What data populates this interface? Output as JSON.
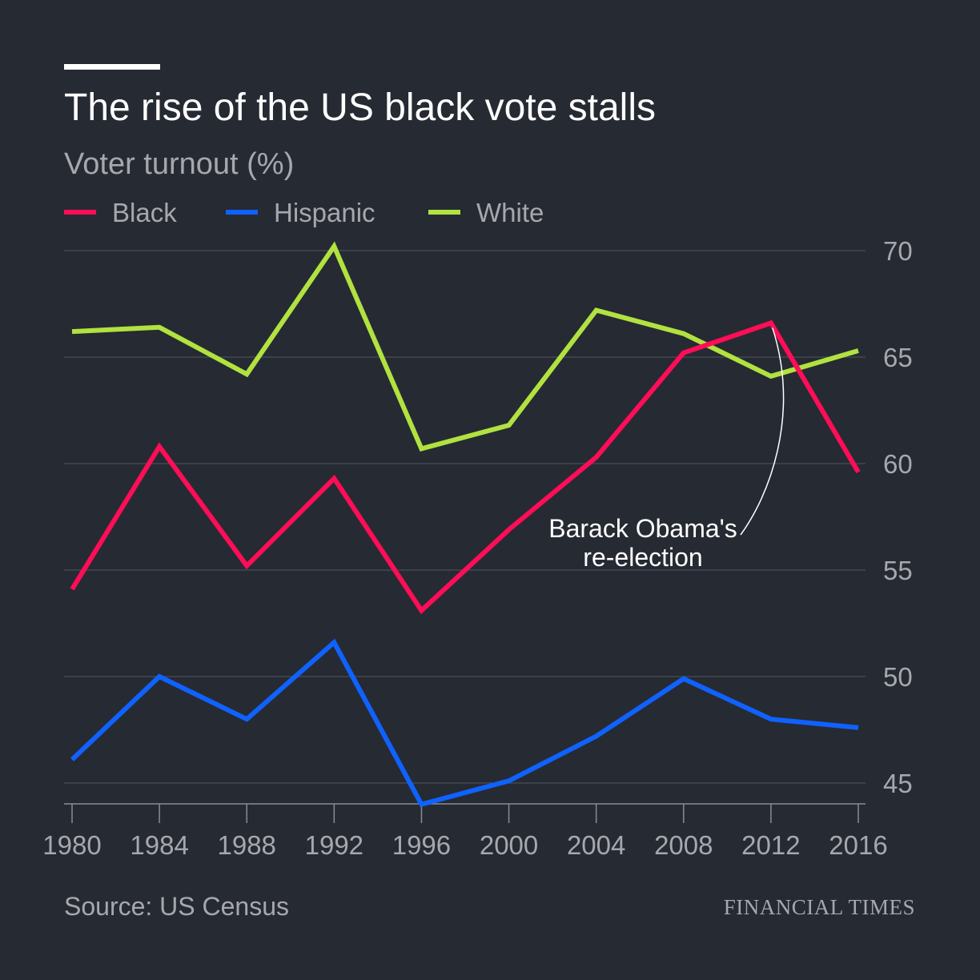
{
  "chart_data": {
    "type": "line",
    "title": "The rise of the US black vote stalls",
    "subtitle": "Voter turnout (%)",
    "x": [
      1980,
      1984,
      1988,
      1992,
      1996,
      2000,
      2004,
      2008,
      2012,
      2016
    ],
    "x_tick_labels": [
      "1980",
      "1984",
      "1988",
      "1992",
      "1996",
      "2000",
      "2004",
      "2008",
      "2012",
      "2016"
    ],
    "ylim": [
      44,
      70
    ],
    "y_ticks": [
      45,
      50,
      55,
      60,
      65,
      70
    ],
    "y_tick_labels": [
      "45",
      "50",
      "55",
      "60",
      "65",
      "70"
    ],
    "y_axis_side": "right",
    "grid": "horizontal",
    "legend_position": "top-left",
    "series": [
      {
        "name": "Black",
        "color": "#ff0d57",
        "values": [
          54.1,
          60.8,
          55.2,
          59.3,
          53.1,
          56.9,
          60.3,
          65.2,
          66.6,
          59.6
        ]
      },
      {
        "name": "Hispanic",
        "color": "#0f62fe",
        "values": [
          46.1,
          50.0,
          48.0,
          51.6,
          44.0,
          45.1,
          47.2,
          49.9,
          48.0,
          47.6
        ]
      },
      {
        "name": "White",
        "color": "#b1e23f",
        "values": [
          66.2,
          66.4,
          64.2,
          70.2,
          60.7,
          61.8,
          67.2,
          66.1,
          64.1,
          65.3
        ]
      }
    ],
    "annotation": {
      "lines": [
        "Barack Obama's",
        "re-election"
      ],
      "target_series": "Black",
      "target_x": 2012
    },
    "source": "Source: US Census",
    "brand": "FINANCIAL TIMES"
  }
}
